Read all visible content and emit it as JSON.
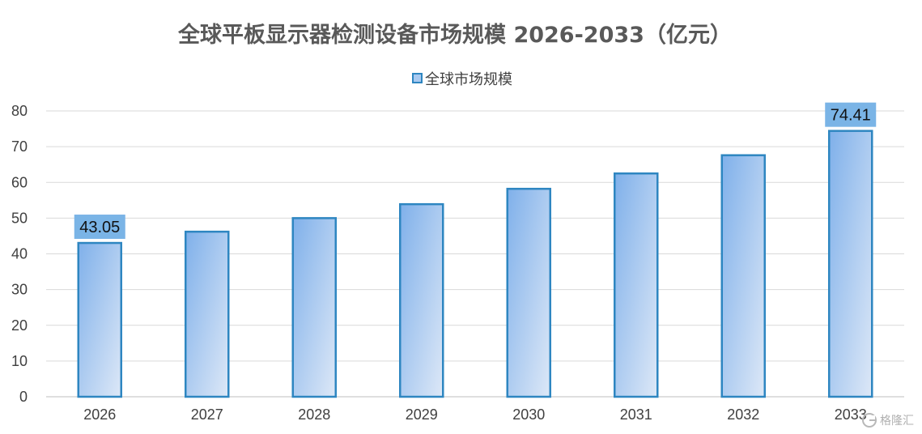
{
  "chart_data": {
    "type": "bar",
    "title": "全球平板显示器检测设备市场规模 2026-2033（亿元）",
    "categories": [
      "2026",
      "2027",
      "2028",
      "2029",
      "2030",
      "2031",
      "2032",
      "2033"
    ],
    "series": [
      {
        "name": "全球市场规模",
        "values": [
          43.05,
          46.2,
          50.0,
          53.9,
          58.2,
          62.5,
          67.6,
          74.41
        ]
      }
    ],
    "labeled_points": [
      {
        "index": 0,
        "label": "43.05"
      },
      {
        "index": 7,
        "label": "74.41"
      }
    ],
    "xlabel": "",
    "ylabel": "",
    "ylim": [
      0,
      80
    ],
    "yticks": [
      "0",
      "10",
      "20",
      "30",
      "40",
      "50",
      "60",
      "70",
      "80"
    ],
    "grid": true,
    "legend_position": "top-center",
    "colors": {
      "bar_fill_top": "#7fb0ea",
      "bar_fill_bottom": "#dde8f7",
      "bar_border": "#2e86c1",
      "data_label_bg": "#7ab4e6",
      "gridline": "#d9d9d9",
      "title_text": "#595959"
    }
  },
  "watermark": {
    "icon": "logo-icon",
    "text": "格隆汇"
  }
}
